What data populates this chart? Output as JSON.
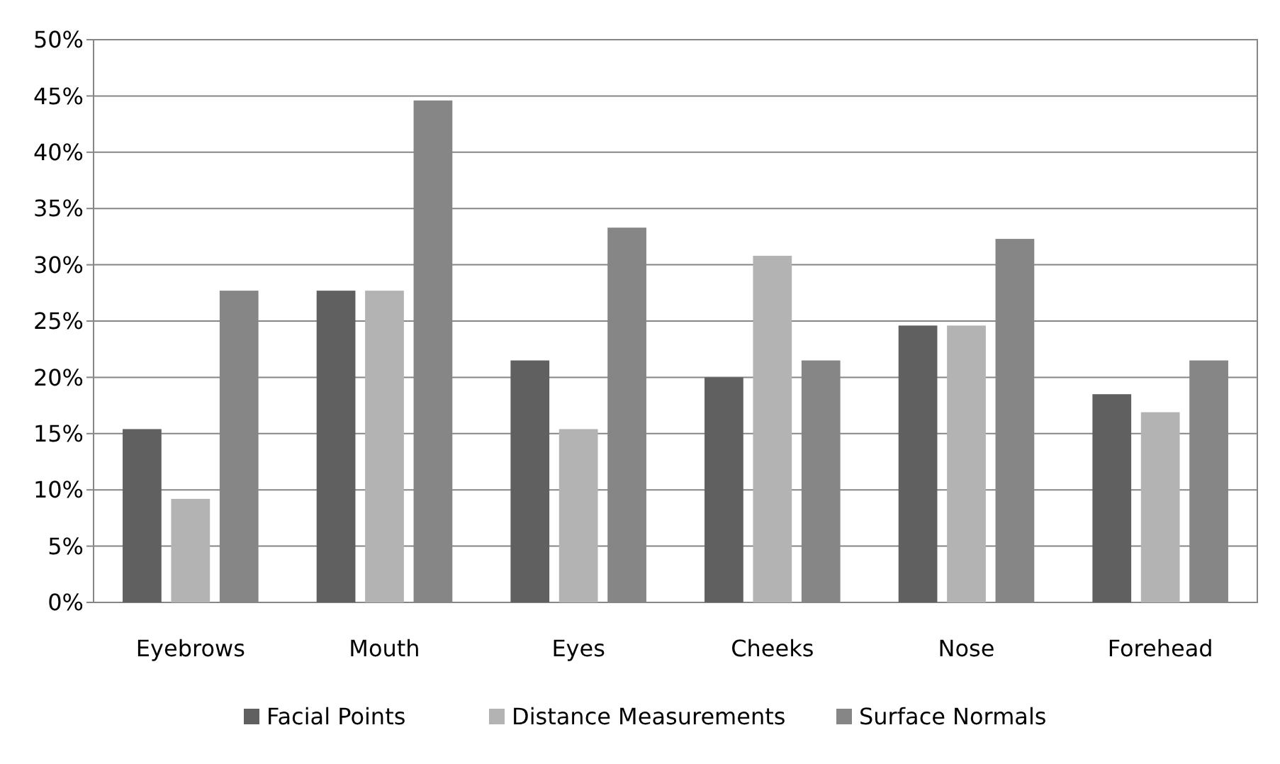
{
  "chart_data": {
    "type": "bar",
    "categories": [
      "Eyebrows",
      "Mouth",
      "Eyes",
      "Cheeks",
      "Nose",
      "Forehead"
    ],
    "series": [
      {
        "name": "Facial Points",
        "color": "#606060",
        "values": [
          15.4,
          27.7,
          21.5,
          20.0,
          24.6,
          18.5
        ]
      },
      {
        "name": "Distance Measurements",
        "color": "#b3b3b3",
        "values": [
          9.2,
          27.7,
          15.4,
          30.8,
          24.6,
          16.9
        ]
      },
      {
        "name": "Surface Normals",
        "color": "#868686",
        "values": [
          27.7,
          44.6,
          33.3,
          21.5,
          32.3,
          21.5
        ]
      }
    ],
    "ylim": [
      0,
      50
    ],
    "yticks": [
      {
        "value": 0,
        "label": "0%"
      },
      {
        "value": 5,
        "label": "5%"
      },
      {
        "value": 10,
        "label": "10%"
      },
      {
        "value": 15,
        "label": "15%"
      },
      {
        "value": 20,
        "label": "20%"
      },
      {
        "value": 25,
        "label": "25%"
      },
      {
        "value": 30,
        "label": "30%"
      },
      {
        "value": 35,
        "label": "35%"
      },
      {
        "value": 40,
        "label": "40%"
      },
      {
        "value": 45,
        "label": "45%"
      },
      {
        "value": 50,
        "label": "50%"
      }
    ],
    "grid": "y",
    "legend": "bottom"
  }
}
